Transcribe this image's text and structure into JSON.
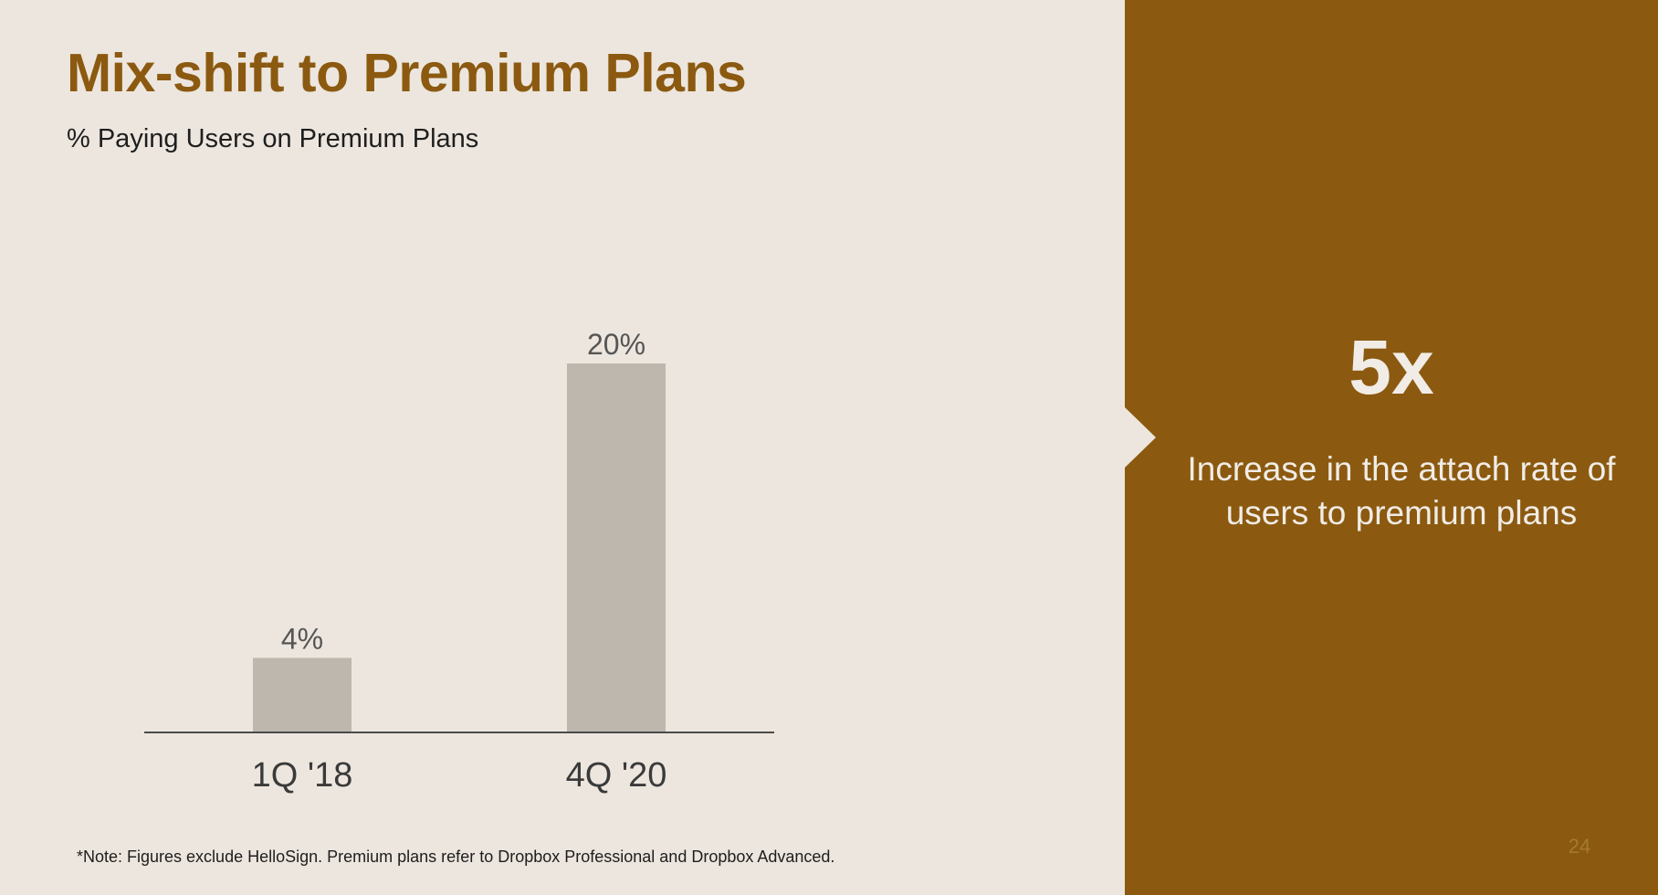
{
  "title": "Mix-shift to Premium Plans",
  "subtitle": "% Paying Users on Premium Plans",
  "note": "*Note: Figures exclude HelloSign. Premium plans refer to Dropbox Professional and Dropbox Advanced.",
  "callout": {
    "value": "5x",
    "description": "Increase in the attach rate of users to premium plans"
  },
  "page_number": "24",
  "colors": {
    "accent": "#8B5A10",
    "background": "#EDE6DE",
    "bar": "#BDB7AE",
    "axis": "#4A4A4A",
    "callout_text": "#F1ECE6"
  },
  "chart_data": {
    "type": "bar",
    "title": "% Paying Users on Premium Plans",
    "categories": [
      "1Q '18",
      "4Q '20"
    ],
    "values": [
      4,
      20
    ],
    "value_labels": [
      "4%",
      "20%"
    ],
    "xlabel": "",
    "ylabel": "",
    "ylim": [
      0,
      20
    ],
    "grid": false,
    "legend": "none"
  }
}
